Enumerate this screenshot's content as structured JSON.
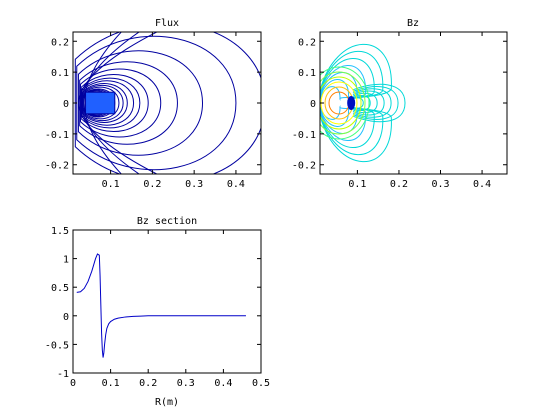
{
  "figure": {
    "background": "#ffffff",
    "axis_color": "#000000",
    "flux_line_color": "#0000a0",
    "bz_outer_color": "#00d8d8",
    "section_line_color": "#0000c8"
  },
  "chart_data": [
    {
      "type": "contour",
      "title": "Flux",
      "xlabel": "",
      "ylabel": "",
      "xlim": [
        0.01,
        0.46
      ],
      "ylim": [
        -0.23,
        0.23
      ],
      "xticks": [
        "0.1",
        "0.2",
        "0.3",
        "0.4"
      ],
      "xtick_values": [
        0.1,
        0.2,
        0.3,
        0.4
      ],
      "yticks": [
        "0.2",
        "0.1",
        "0",
        "-0.1",
        "-0.2"
      ],
      "ytick_values": [
        0.2,
        0.1,
        0,
        -0.1,
        -0.2
      ],
      "core_center": [
        0.075,
        0.0
      ],
      "coil_box": {
        "r_min": 0.04,
        "r_max": 0.11,
        "z_min": -0.035,
        "z_max": 0.035
      },
      "closed_contour_extents_r": [
        0.085,
        0.09,
        0.095,
        0.1,
        0.105,
        0.11,
        0.12,
        0.13,
        0.14,
        0.155,
        0.17,
        0.19,
        0.22,
        0.26,
        0.32,
        0.4,
        0.47
      ],
      "open_contour_offsets_r": [
        0.055,
        0.1,
        0.145
      ]
    },
    {
      "type": "contour",
      "title": "Bz",
      "xlabel": "",
      "ylabel": "",
      "xlim": [
        0.01,
        0.46
      ],
      "ylim": [
        -0.23,
        0.23
      ],
      "xticks": [
        "0.1",
        "0.2",
        "0.3",
        "0.4"
      ],
      "xtick_values": [
        0.1,
        0.2,
        0.3,
        0.4
      ],
      "yticks": [
        "0.2",
        "0.1",
        "0",
        "-0.1",
        "-0.2"
      ],
      "ytick_values": [
        0.2,
        0.1,
        0,
        -0.1,
        -0.2
      ],
      "core_center": [
        0.075,
        0.0
      ],
      "colormap": [
        "#00a0ff",
        "#00e0e0",
        "#40ff80",
        "#c0ff00",
        "#ffff00",
        "#ffa000",
        "#ff4000",
        "#c00000"
      ]
    },
    {
      "type": "line",
      "title": "Bz section",
      "xlabel": "R(m)",
      "ylabel": "",
      "xlim": [
        0,
        0.5
      ],
      "ylim": [
        -1,
        1.5
      ],
      "xticks": [
        "0",
        "0.1",
        "0.2",
        "0.3",
        "0.4",
        "0.5"
      ],
      "xtick_values": [
        0,
        0.1,
        0.2,
        0.3,
        0.4,
        0.5
      ],
      "yticks": [
        "1.5",
        "1",
        "0.5",
        "0",
        "-0.5",
        "-1"
      ],
      "ytick_values": [
        1.5,
        1,
        0.5,
        0,
        -0.5,
        -1
      ],
      "series": [
        {
          "x": [
            0.01,
            0.02,
            0.03,
            0.04,
            0.05,
            0.06,
            0.065,
            0.07,
            0.072,
            0.074,
            0.076,
            0.078,
            0.08,
            0.082,
            0.084,
            0.087,
            0.09,
            0.095,
            0.1,
            0.11,
            0.12,
            0.14,
            0.16,
            0.18,
            0.2,
            0.25,
            0.3,
            0.35,
            0.4,
            0.46
          ],
          "y": [
            0.41,
            0.42,
            0.48,
            0.6,
            0.78,
            1.0,
            1.08,
            1.06,
            0.7,
            0.2,
            -0.3,
            -0.6,
            -0.73,
            -0.65,
            -0.5,
            -0.33,
            -0.22,
            -0.14,
            -0.1,
            -0.06,
            -0.04,
            -0.02,
            -0.01,
            -0.005,
            0.0,
            0.0,
            0.0,
            0.0,
            0.0,
            0.0
          ]
        }
      ]
    }
  ]
}
